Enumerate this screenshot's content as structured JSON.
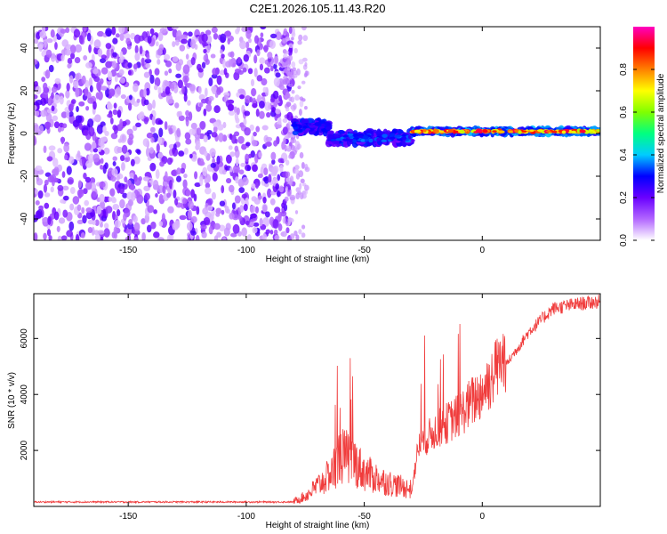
{
  "title": "C2E1.2026.105.11.43.R20",
  "chart_data": [
    {
      "type": "heatmap",
      "xlabel": "Height of straight line (km)",
      "ylabel": "Frequency (Hz)",
      "xlim": [
        -190,
        50
      ],
      "ylim": [
        -50,
        50
      ],
      "xticks": [
        -150,
        -100,
        -50,
        0
      ],
      "yticks": [
        -40,
        -20,
        0,
        20,
        40
      ],
      "xtick_labels": [
        "-150",
        "-100",
        "-50",
        "0"
      ],
      "ytick_labels": [
        "-40",
        "-20",
        "0",
        "20",
        "40"
      ],
      "colorbar": {
        "label": "Normalized spectral amplitude",
        "range": [
          0,
          1
        ],
        "ticks": [
          0.0,
          0.2,
          0.4,
          0.6,
          0.8
        ],
        "tick_labels": [
          "0.0",
          "0.2",
          "0.4",
          "0.6",
          "0.8"
        ],
        "colormap": [
          "#ffffff",
          "#8000ff",
          "#0000ff",
          "#00ffff",
          "#00ff00",
          "#ffff00",
          "#ff8000",
          "#ff0000",
          "#ff00ff"
        ]
      },
      "regions": [
        {
          "x_range": [
            -190,
            -80
          ],
          "description": "noise",
          "level": 0.12
        },
        {
          "x_range": [
            -80,
            -65
          ],
          "center_freq": 3,
          "level": 0.3
        },
        {
          "x_range": [
            -65,
            -30
          ],
          "center_freq": -2,
          "level": 0.35
        },
        {
          "x_range": [
            -30,
            50
          ],
          "center_freq": 1,
          "level": 0.9
        }
      ]
    },
    {
      "type": "line",
      "xlabel": "Height of straight line (km)",
      "ylabel": "SNR (10 * v/v)",
      "xlim": [
        -190,
        50
      ],
      "ylim": [
        0,
        7600
      ],
      "xticks": [
        -150,
        -100,
        -50,
        0
      ],
      "yticks": [
        2000,
        4000,
        6000
      ],
      "xtick_labels": [
        "-150",
        "-100",
        "-50",
        "0"
      ],
      "ytick_labels": [
        "2000",
        "4000",
        "6000"
      ],
      "line_color": "#f03c3c",
      "series_key": [
        {
          "x": -190,
          "y": 150
        },
        {
          "x": -80,
          "y": 150
        },
        {
          "x": -75,
          "y": 300
        },
        {
          "x": -65,
          "y": 900
        },
        {
          "x": -60,
          "y": 1500
        },
        {
          "x": -55,
          "y": 1400
        },
        {
          "x": -50,
          "y": 1000
        },
        {
          "x": -40,
          "y": 700
        },
        {
          "x": -30,
          "y": 500
        },
        {
          "x": -27,
          "y": 2000
        },
        {
          "x": -20,
          "y": 2500
        },
        {
          "x": -10,
          "y": 3000
        },
        {
          "x": 0,
          "y": 3800
        },
        {
          "x": 10,
          "y": 5000
        },
        {
          "x": 20,
          "y": 6200
        },
        {
          "x": 30,
          "y": 7000
        },
        {
          "x": 40,
          "y": 7150
        },
        {
          "x": 50,
          "y": 7250
        }
      ]
    }
  ]
}
